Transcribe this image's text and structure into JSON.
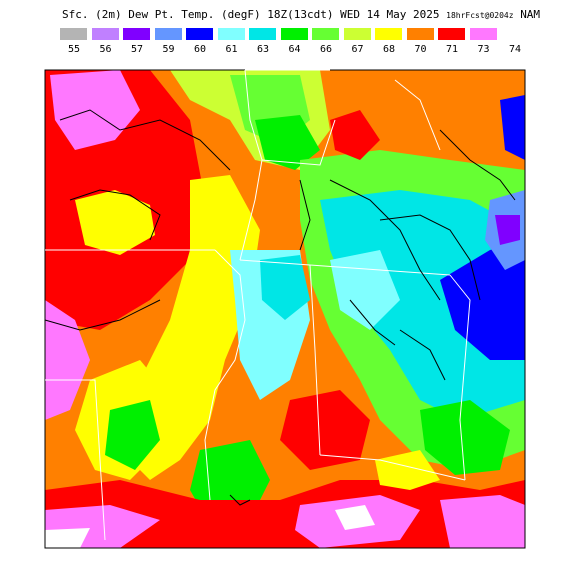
{
  "title": {
    "main": "Sfc. (2m) Dew Pt. Temp. (degF) 18Z(13cdt) WED 14 May 2025",
    "forecast": "18hrFcst@0204z",
    "model": "NAM"
  },
  "legend": {
    "colors": [
      "#b4b4b4",
      "#c080ff",
      "#8000ff",
      "#6496ff",
      "#0000ff",
      "#80ffff",
      "#00e6e6",
      "#00f000",
      "#66ff33",
      "#ccff33",
      "#ffff00",
      "#ff8000",
      "#ff0000",
      "#ff78ff"
    ],
    "labels": [
      "55",
      "56",
      "57",
      "59",
      "60",
      "61",
      "63",
      "64",
      "66",
      "67",
      "68",
      "70",
      "71",
      "73",
      "74"
    ]
  }
}
